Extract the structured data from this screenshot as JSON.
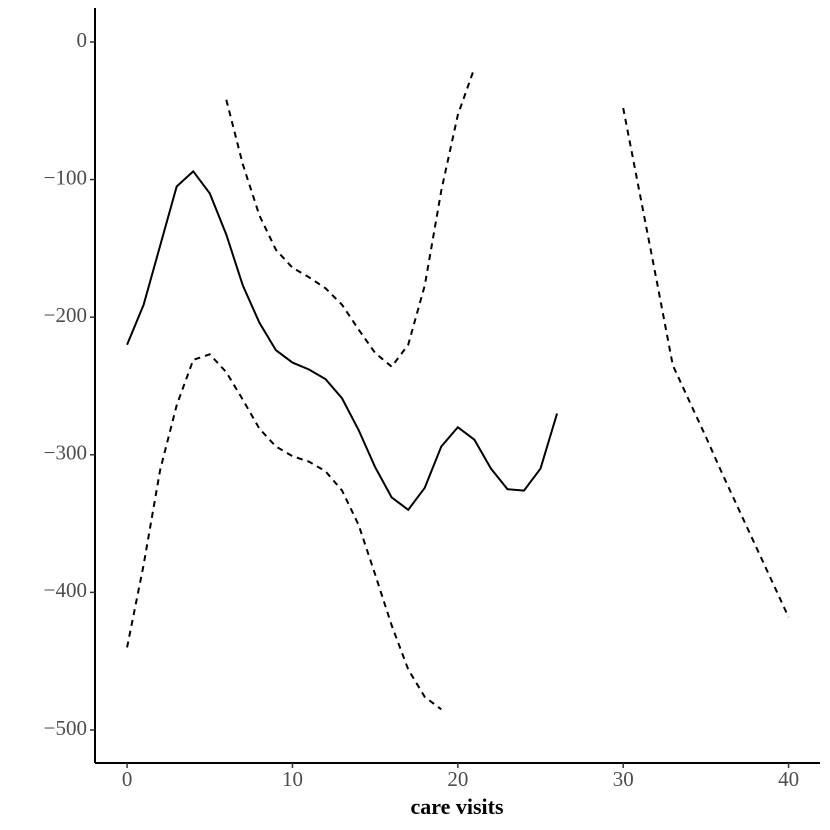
{
  "chart_data": {
    "type": "line",
    "x_label": "care visits",
    "x": [
      0,
      1,
      2,
      3,
      4,
      5,
      6,
      7,
      8,
      9,
      10,
      11,
      12,
      13,
      14,
      15,
      16,
      17,
      18,
      19,
      20,
      21,
      22,
      23,
      24,
      25,
      26,
      27,
      28,
      29,
      30,
      31,
      32,
      33,
      34,
      35,
      36,
      37,
      38,
      39,
      40
    ],
    "series": [
      {
        "color": "#000000",
        "line_style": "solid",
        "values": [
          -220,
          -191,
          -148,
          -105,
          -94,
          -110,
          -140,
          -177,
          -204,
          -224,
          -233,
          -238,
          -245,
          -259,
          -282,
          -309,
          -331,
          -340,
          -324,
          -294,
          -280,
          -289,
          -310,
          -325,
          -326,
          -310,
          -270,
          null,
          null,
          null,
          null,
          null,
          null,
          null,
          null,
          null,
          null,
          null,
          null,
          null,
          null
        ]
      },
      {
        "color": "#000000",
        "line_style": "dashed",
        "values": [
          null,
          null,
          null,
          null,
          null,
          null,
          -42,
          -89,
          -126,
          -151,
          -164,
          -171,
          -179,
          -191,
          -209,
          -226,
          -236,
          -220,
          -177,
          -108,
          -53,
          -19,
          null,
          null,
          null,
          null,
          null,
          null,
          null,
          null,
          -48,
          -110,
          -172,
          -235,
          -261,
          -287,
          -314,
          -340,
          -366,
          -392,
          -418
        ]
      },
      {
        "color": "#000000",
        "line_style": "dashed",
        "values": [
          -440,
          -380,
          -311,
          -264,
          -231,
          -227,
          -240,
          -260,
          -281,
          -294,
          -301,
          -305,
          -312,
          -326,
          -351,
          -387,
          -424,
          -456,
          -476,
          -485,
          null,
          null,
          null,
          null,
          null,
          null,
          null,
          null,
          null,
          null,
          null,
          null,
          null,
          null,
          null,
          null,
          null,
          null,
          null,
          null,
          null
        ]
      }
    ],
    "xlim": [
      -1.94,
      41.9
    ],
    "ylim": [
      -524,
      24.7
    ],
    "xticks": [
      0,
      10,
      20,
      30,
      40
    ],
    "yticks": [
      {
        "value": 0,
        "label": "0"
      },
      {
        "value": -100,
        "label": "−100"
      },
      {
        "value": -200,
        "label": "−200"
      },
      {
        "value": -300,
        "label": "−300"
      },
      {
        "value": -400,
        "label": "−400"
      },
      {
        "value": -500,
        "label": "−500"
      }
    ]
  }
}
